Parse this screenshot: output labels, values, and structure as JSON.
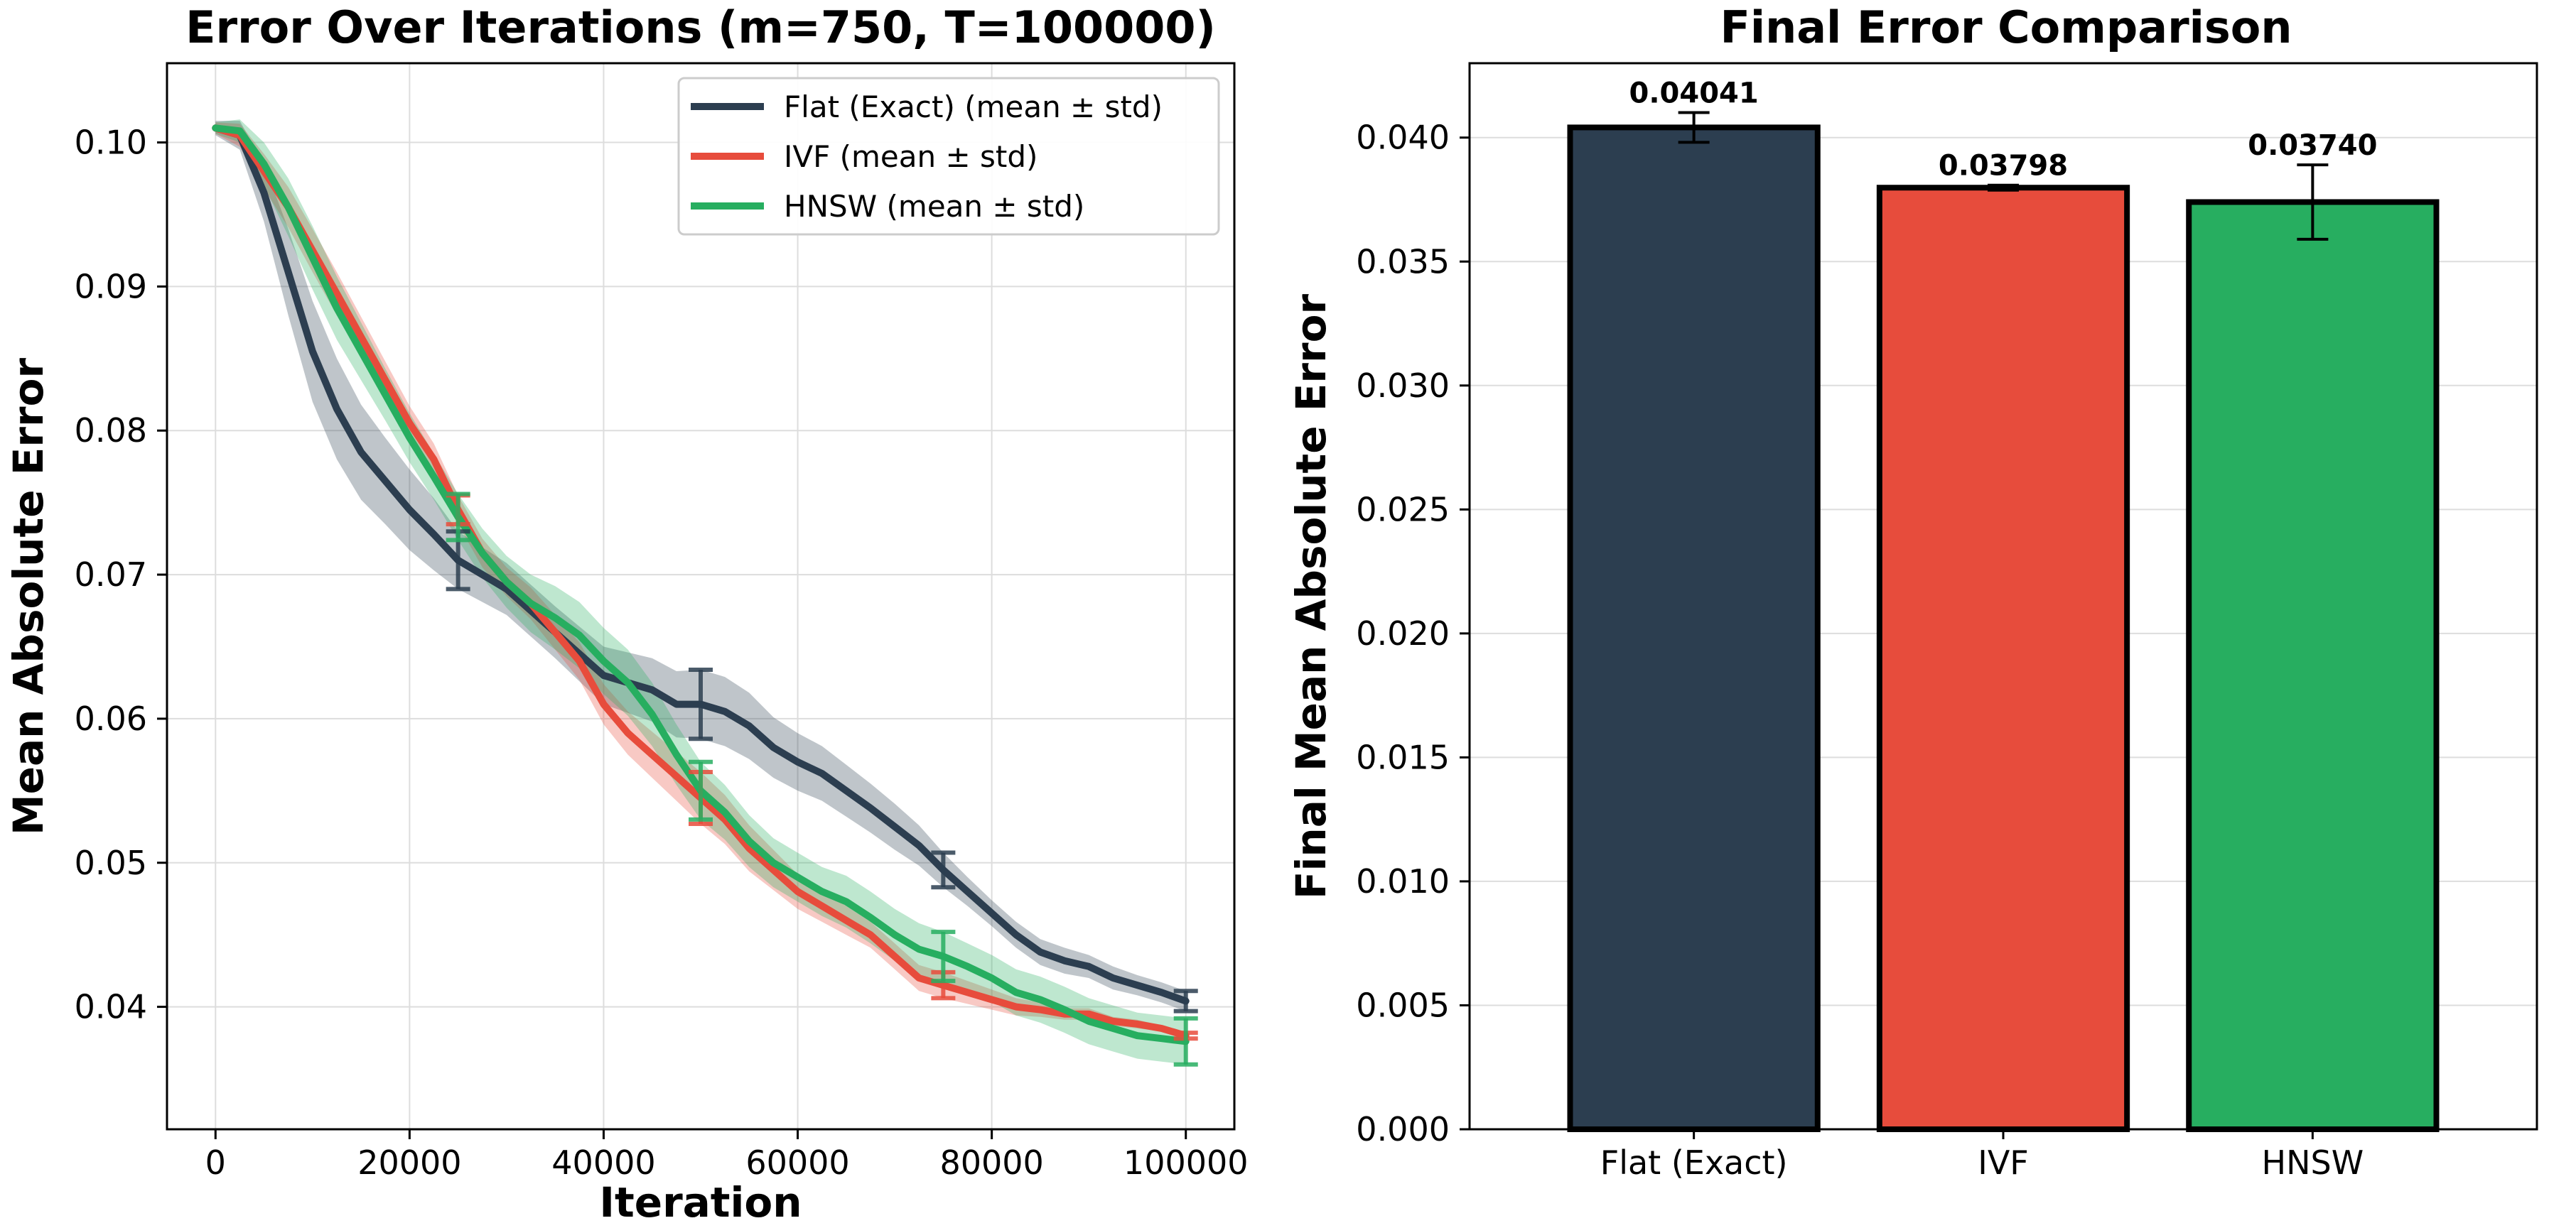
{
  "chart_data": [
    {
      "type": "line",
      "title": "Error Over Iterations (m=750, T=100000)",
      "xlabel": "Iteration",
      "ylabel": "Mean Absolute Error",
      "xlim": [
        -5000,
        105000
      ],
      "ylim": [
        0.0315,
        0.1055
      ],
      "xticks": [
        0,
        20000,
        40000,
        60000,
        80000,
        100000
      ],
      "xtick_labels": [
        "0",
        "20000",
        "40000",
        "60000",
        "80000",
        "100000"
      ],
      "yticks": [
        0.04,
        0.05,
        0.06,
        0.07,
        0.08,
        0.09,
        0.1
      ],
      "ytick_labels": [
        "0.04",
        "0.05",
        "0.06",
        "0.07",
        "0.08",
        "0.09",
        "0.10"
      ],
      "grid": true,
      "legend_position": "top-right",
      "x": [
        0,
        2500,
        5000,
        7500,
        10000,
        12500,
        15000,
        17500,
        20000,
        22500,
        25000,
        27500,
        30000,
        32500,
        35000,
        37500,
        40000,
        42500,
        45000,
        47500,
        50000,
        52500,
        55000,
        57500,
        60000,
        62500,
        65000,
        67500,
        70000,
        72500,
        75000,
        77500,
        80000,
        82500,
        85000,
        87500,
        90000,
        92500,
        95000,
        97500,
        100000
      ],
      "series": [
        {
          "name": "Flat (Exact) (mean ± std)",
          "color": "#2c3e50",
          "values": [
            0.101,
            0.1005,
            0.0965,
            0.091,
            0.0855,
            0.0815,
            0.0785,
            0.0765,
            0.0745,
            0.0728,
            0.071,
            0.07,
            0.069,
            0.0675,
            0.066,
            0.0645,
            0.063,
            0.0625,
            0.062,
            0.061,
            0.061,
            0.0605,
            0.0595,
            0.058,
            0.057,
            0.0562,
            0.055,
            0.0538,
            0.0525,
            0.0512,
            0.0495,
            0.048,
            0.0465,
            0.045,
            0.0438,
            0.0432,
            0.0428,
            0.042,
            0.0415,
            0.041,
            0.0404
          ],
          "std": [
            0.0005,
            0.001,
            0.002,
            0.003,
            0.0035,
            0.0035,
            0.0033,
            0.003,
            0.0028,
            0.0025,
            0.002,
            0.0019,
            0.0018,
            0.0018,
            0.0018,
            0.0019,
            0.002,
            0.0021,
            0.0022,
            0.0023,
            0.0024,
            0.0024,
            0.0023,
            0.0021,
            0.002,
            0.0019,
            0.0018,
            0.0017,
            0.0016,
            0.0014,
            0.0012,
            0.001,
            0.0009,
            0.0009,
            0.0009,
            0.0009,
            0.0008,
            0.0008,
            0.0007,
            0.0007,
            0.0007
          ]
        },
        {
          "name": "IVF (mean ± std)",
          "color": "#e74c3c",
          "values": [
            0.101,
            0.1005,
            0.098,
            0.0955,
            0.0925,
            0.0895,
            0.0865,
            0.0835,
            0.0805,
            0.078,
            0.0745,
            0.0715,
            0.0695,
            0.068,
            0.066,
            0.064,
            0.061,
            0.059,
            0.0575,
            0.056,
            0.0545,
            0.053,
            0.051,
            0.0495,
            0.048,
            0.047,
            0.046,
            0.045,
            0.0435,
            0.042,
            0.0415,
            0.041,
            0.0405,
            0.04,
            0.0398,
            0.0395,
            0.0395,
            0.039,
            0.0388,
            0.0385,
            0.038
          ],
          "std": [
            0.0004,
            0.0008,
            0.0012,
            0.0014,
            0.0015,
            0.0015,
            0.0014,
            0.0013,
            0.0012,
            0.0011,
            0.001,
            0.001,
            0.001,
            0.0011,
            0.0012,
            0.0013,
            0.0014,
            0.0015,
            0.0016,
            0.0017,
            0.0018,
            0.0017,
            0.0016,
            0.0014,
            0.0012,
            0.0011,
            0.001,
            0.0009,
            0.0009,
            0.0009,
            0.0009,
            0.0008,
            0.0007,
            0.0006,
            0.0005,
            0.0004,
            0.0004,
            0.0003,
            0.0003,
            0.0002,
            0.0002
          ]
        },
        {
          "name": "HNSW (mean ± std)",
          "color": "#27ae60",
          "values": [
            0.101,
            0.1008,
            0.0985,
            0.0955,
            0.092,
            0.0885,
            0.0855,
            0.0825,
            0.0795,
            0.0768,
            0.074,
            0.0715,
            0.0695,
            0.068,
            0.067,
            0.0658,
            0.064,
            0.0625,
            0.0603,
            0.0575,
            0.055,
            0.0535,
            0.0515,
            0.05,
            0.049,
            0.048,
            0.0473,
            0.0462,
            0.045,
            0.044,
            0.0435,
            0.0428,
            0.042,
            0.041,
            0.0405,
            0.0398,
            0.039,
            0.0385,
            0.038,
            0.0378,
            0.0376
          ],
          "std": [
            0.0004,
            0.0008,
            0.0015,
            0.002,
            0.0022,
            0.0022,
            0.002,
            0.0018,
            0.0017,
            0.0016,
            0.0016,
            0.0017,
            0.0018,
            0.002,
            0.0022,
            0.0023,
            0.0023,
            0.0023,
            0.0022,
            0.0021,
            0.002,
            0.0019,
            0.0018,
            0.0017,
            0.0017,
            0.0017,
            0.0018,
            0.0018,
            0.0018,
            0.0018,
            0.0017,
            0.0016,
            0.0016,
            0.0016,
            0.0016,
            0.0016,
            0.0016,
            0.0016,
            0.0016,
            0.0016,
            0.0016
          ]
        }
      ]
    },
    {
      "type": "bar",
      "title": "Final Error Comparison",
      "xlabel": "",
      "ylabel": "Final Mean Absolute Error",
      "ylim": [
        0,
        0.043
      ],
      "yticks": [
        0.0,
        0.005,
        0.01,
        0.015,
        0.02,
        0.025,
        0.03,
        0.035,
        0.04
      ],
      "ytick_labels": [
        "0.000",
        "0.005",
        "0.010",
        "0.015",
        "0.020",
        "0.025",
        "0.030",
        "0.035",
        "0.040"
      ],
      "grid": true,
      "categories": [
        "Flat (Exact)",
        "IVF",
        "HNSW"
      ],
      "values": [
        0.04041,
        0.03798,
        0.0374
      ],
      "errors": [
        0.0006,
        0.0001,
        0.0015
      ],
      "value_labels": [
        "0.04041",
        "0.03798",
        "0.03740"
      ],
      "colors": [
        "#2c3e50",
        "#e74c3c",
        "#27ae60"
      ]
    }
  ]
}
